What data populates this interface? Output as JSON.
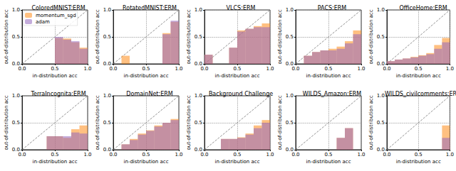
{
  "chart_data": [
    {
      "type": "bar",
      "title": "ColoredMNIST:ERM",
      "x_label": "in-distribution acc",
      "y_label": "out-of-distribution acc",
      "bins": [
        0,
        0.125,
        0.25,
        0.375,
        0.5,
        0.625,
        0.75,
        0.875,
        1
      ],
      "series": [
        {
          "name": "momentum_sgd",
          "color": "#ff8c1a",
          "values": [
            null,
            null,
            null,
            null,
            0.48,
            0.47,
            0.4,
            0.3
          ]
        },
        {
          "name": "adam",
          "color": "#9467bd",
          "values": [
            null,
            null,
            null,
            null,
            0.5,
            0.45,
            0.42,
            0.28
          ]
        }
      ],
      "xlim": [
        0,
        1
      ],
      "ylim": [
        0,
        1
      ],
      "xticks": [
        {
          "value": 0,
          "label": "0.0"
        },
        0.5,
        {
          "value": 1,
          "label": "1.0"
        }
      ],
      "yticks": [
        {
          "value": 0,
          "label": "0.0"
        },
        0.5,
        {
          "value": 1,
          "label": "1.0"
        }
      ],
      "grid": true,
      "legend": "upper left"
    },
    {
      "type": "bar",
      "title": "RotatedMNIST:ERM",
      "x_label": "in-distribution acc",
      "y_label": "out-of-distribution acc",
      "bins": [
        0,
        0.125,
        0.25,
        0.375,
        0.5,
        0.625,
        0.75,
        0.875,
        1
      ],
      "series": [
        {
          "name": "momentum_sgd",
          "color": "#ff8c1a",
          "values": [
            null,
            0.15,
            null,
            null,
            null,
            null,
            0.57,
            0.78
          ]
        },
        {
          "name": "adam",
          "color": "#9467bd",
          "values": [
            null,
            null,
            null,
            null,
            null,
            null,
            0.55,
            0.8
          ]
        }
      ],
      "xlim": [
        0,
        1
      ],
      "ylim": [
        0,
        1
      ],
      "xticks": [
        {
          "value": 0,
          "label": "0.0"
        },
        0.5,
        {
          "value": 1,
          "label": "1.0"
        }
      ],
      "yticks": [
        {
          "value": 0,
          "label": "0.0"
        },
        0.5,
        {
          "value": 1,
          "label": "1.0"
        }
      ],
      "grid": true
    },
    {
      "type": "bar",
      "title": "VLCS:ERM",
      "x_label": "in-distribution acc",
      "y_label": "out-of-distribution acc",
      "bins": [
        0,
        0.125,
        0.25,
        0.375,
        0.5,
        0.625,
        0.75,
        0.875,
        1
      ],
      "series": [
        {
          "name": "momentum_sgd",
          "color": "#ff8c1a",
          "values": [
            0.17,
            null,
            null,
            0.3,
            0.62,
            0.65,
            0.7,
            0.75
          ]
        },
        {
          "name": "adam",
          "color": "#9467bd",
          "values": [
            0.17,
            null,
            null,
            0.3,
            0.6,
            0.65,
            0.68,
            0.68
          ]
        }
      ],
      "xlim": [
        0,
        1
      ],
      "ylim": [
        0,
        1
      ],
      "xticks": [
        {
          "value": 0,
          "label": "0.0"
        },
        0.5,
        {
          "value": 1,
          "label": "1.0"
        }
      ],
      "yticks": [
        {
          "value": 0,
          "label": "0.0"
        },
        0.5,
        {
          "value": 1,
          "label": "1.0"
        }
      ],
      "grid": true
    },
    {
      "type": "bar",
      "title": "PACS:ERM",
      "x_label": "in-distribution acc",
      "y_label": "out-of-distribution acc",
      "bins": [
        0,
        0.125,
        0.25,
        0.375,
        0.5,
        0.625,
        0.75,
        0.875,
        1
      ],
      "series": [
        {
          "name": "momentum_sgd",
          "color": "#ff8c1a",
          "values": [
            null,
            0.15,
            0.22,
            0.25,
            0.28,
            0.32,
            0.42,
            0.62
          ]
        },
        {
          "name": "adam",
          "color": "#9467bd",
          "values": [
            null,
            0.15,
            0.22,
            0.25,
            0.25,
            0.28,
            0.38,
            0.55
          ]
        }
      ],
      "xlim": [
        0,
        1
      ],
      "ylim": [
        0,
        1
      ],
      "xticks": [
        {
          "value": 0,
          "label": "0.0"
        },
        0.5,
        {
          "value": 1,
          "label": "1.0"
        }
      ],
      "yticks": [
        {
          "value": 0,
          "label": "0.0"
        },
        0.5,
        {
          "value": 1,
          "label": "1.0"
        }
      ],
      "grid": true
    },
    {
      "type": "bar",
      "title": "OfficeHome:ERM",
      "x_label": "in-distribution acc",
      "y_label": "out-of-distribution acc",
      "bins": [
        0,
        0.125,
        0.25,
        0.375,
        0.5,
        0.625,
        0.75,
        0.875,
        1
      ],
      "series": [
        {
          "name": "momentum_sgd",
          "color": "#ff8c1a",
          "values": [
            0.05,
            0.08,
            0.1,
            0.13,
            0.16,
            0.2,
            0.35,
            0.48
          ]
        },
        {
          "name": "adam",
          "color": "#9467bd",
          "values": [
            0.05,
            0.08,
            0.1,
            0.12,
            0.15,
            0.18,
            0.28,
            0.4
          ]
        }
      ],
      "xlim": [
        0,
        1
      ],
      "ylim": [
        0,
        1
      ],
      "xticks": [
        {
          "value": 0,
          "label": "0.0"
        },
        0.5,
        {
          "value": 1,
          "label": "1.0"
        }
      ],
      "yticks": [
        {
          "value": 0,
          "label": "0.0"
        },
        0.5,
        {
          "value": 1,
          "label": "1.0"
        }
      ],
      "grid": true
    },
    {
      "type": "bar",
      "title": "TerraIncognita:ERM",
      "x_label": "in-distribution acc",
      "y_label": "out-of-distribution acc",
      "bins": [
        0,
        0.125,
        0.25,
        0.375,
        0.5,
        0.625,
        0.75,
        0.875,
        1
      ],
      "series": [
        {
          "name": "momentum_sgd",
          "color": "#ff8c1a",
          "values": [
            null,
            null,
            null,
            0.25,
            0.25,
            0.22,
            0.38,
            0.45
          ]
        },
        {
          "name": "adam",
          "color": "#9467bd",
          "values": [
            null,
            null,
            null,
            0.25,
            0.25,
            0.25,
            0.32,
            0.3
          ]
        }
      ],
      "xlim": [
        0,
        1
      ],
      "ylim": [
        0,
        1
      ],
      "xticks": [
        {
          "value": 0,
          "label": "0.0"
        },
        0.5,
        {
          "value": 1,
          "label": "1.0"
        }
      ],
      "yticks": [
        {
          "value": 0,
          "label": "0.0"
        },
        0.5,
        {
          "value": 1,
          "label": "1.0"
        }
      ],
      "grid": true
    },
    {
      "type": "bar",
      "title": "DomainNet:ERM",
      "x_label": "in-distribution acc",
      "y_label": "out-of-distribution acc",
      "bins": [
        0,
        0.125,
        0.25,
        0.375,
        0.5,
        0.625,
        0.75,
        0.875,
        1
      ],
      "series": [
        {
          "name": "momentum_sgd",
          "color": "#ff8c1a",
          "values": [
            null,
            0.1,
            0.2,
            0.3,
            0.36,
            0.45,
            0.5,
            0.57
          ]
        },
        {
          "name": "adam",
          "color": "#9467bd",
          "values": [
            null,
            0.1,
            0.18,
            0.28,
            0.35,
            0.43,
            0.5,
            0.55
          ]
        }
      ],
      "xlim": [
        0,
        1
      ],
      "ylim": [
        0,
        1
      ],
      "xticks": [
        {
          "value": 0,
          "label": "0.0"
        },
        0.5,
        {
          "value": 1,
          "label": "1.0"
        }
      ],
      "yticks": [
        {
          "value": 0,
          "label": "0.0"
        },
        0.5,
        {
          "value": 1,
          "label": "1.0"
        }
      ],
      "grid": true
    },
    {
      "type": "bar",
      "title": "Background Challenge",
      "x_label": "in-distribution acc",
      "y_label": "out-of-distribution acc",
      "bins": [
        0,
        0.125,
        0.25,
        0.375,
        0.5,
        0.625,
        0.75,
        0.875,
        1
      ],
      "series": [
        {
          "name": "momentum_sgd",
          "color": "#ff8c1a",
          "values": [
            null,
            null,
            0.2,
            0.2,
            0.23,
            0.3,
            0.45,
            0.55
          ]
        },
        {
          "name": "adam",
          "color": "#9467bd",
          "values": [
            null,
            null,
            0.2,
            0.2,
            0.22,
            0.28,
            0.4,
            0.5
          ]
        }
      ],
      "xlim": [
        0,
        1
      ],
      "ylim": [
        0,
        1
      ],
      "xticks": [
        {
          "value": 0,
          "label": "0.0"
        },
        0.5,
        {
          "value": 1,
          "label": "1.0"
        }
      ],
      "yticks": [
        {
          "value": 0,
          "label": "0.0"
        },
        0.5,
        {
          "value": 1,
          "label": "1.0"
        }
      ],
      "grid": true
    },
    {
      "type": "bar",
      "title": "WILDS_Amazon:ERM",
      "x_label": "in-distribution acc",
      "y_label": "out-of-distribution acc",
      "bins": [
        0,
        0.125,
        0.25,
        0.375,
        0.5,
        0.625,
        0.75,
        0.875,
        1
      ],
      "series": [
        {
          "name": "momentum_sgd",
          "color": "#ff8c1a",
          "values": [
            null,
            null,
            null,
            null,
            null,
            0.22,
            0.4,
            null
          ]
        },
        {
          "name": "adam",
          "color": "#9467bd",
          "values": [
            null,
            null,
            null,
            null,
            null,
            0.22,
            0.4,
            null
          ]
        }
      ],
      "xlim": [
        0,
        1
      ],
      "ylim": [
        0,
        1
      ],
      "xticks": [
        {
          "value": 0,
          "label": "0.0"
        },
        0.5,
        {
          "value": 1,
          "label": "1.0"
        }
      ],
      "yticks": [
        {
          "value": 0,
          "label": "0.0"
        },
        0.5,
        {
          "value": 1,
          "label": "1.0"
        }
      ],
      "grid": true
    },
    {
      "type": "bar",
      "title": "WILDS_civilcomments:ERM",
      "x_label": "in-distribution acc",
      "y_label": "out-of-distribution acc",
      "bins": [
        0,
        0.125,
        0.25,
        0.375,
        0.5,
        0.625,
        0.75,
        0.875,
        1
      ],
      "series": [
        {
          "name": "momentum_sgd",
          "color": "#ff8c1a",
          "values": [
            null,
            null,
            null,
            null,
            null,
            null,
            null,
            0.45
          ]
        },
        {
          "name": "adam",
          "color": "#9467bd",
          "values": [
            null,
            null,
            null,
            null,
            null,
            null,
            null,
            0.22
          ]
        }
      ],
      "xlim": [
        0,
        1
      ],
      "ylim": [
        0,
        1
      ],
      "xticks": [
        {
          "value": 0,
          "label": "0.0"
        },
        0.5,
        {
          "value": 1,
          "label": "1.0"
        }
      ],
      "yticks": [
        {
          "value": 0,
          "label": "0.0"
        },
        0.5,
        {
          "value": 1,
          "label": "1.0"
        }
      ],
      "grid": true
    }
  ]
}
